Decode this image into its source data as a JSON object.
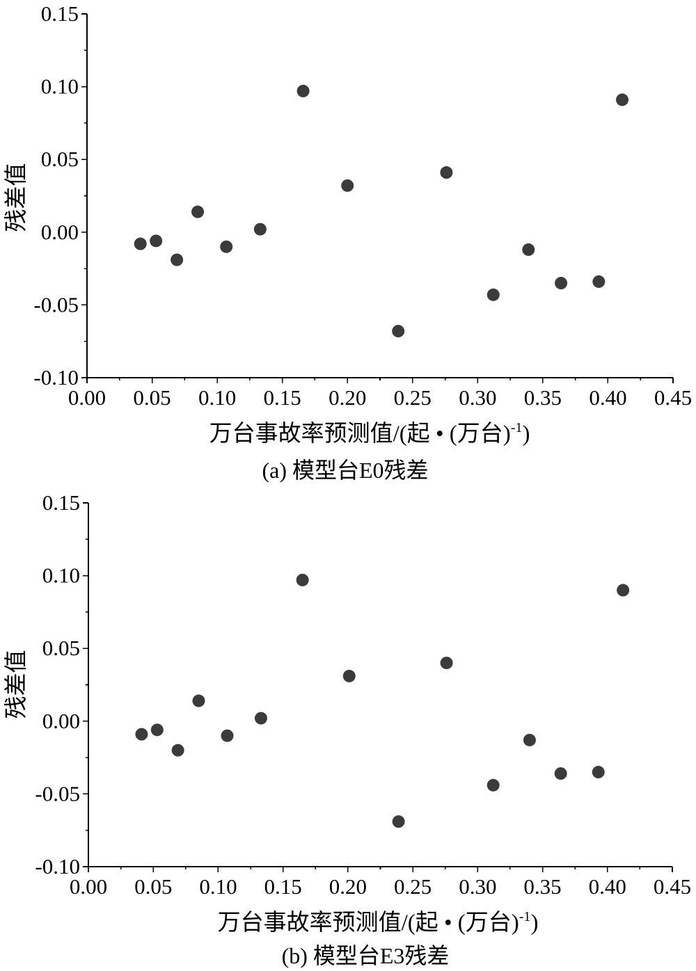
{
  "colors": {
    "marker": "#3b3b3b",
    "axis": "#000000",
    "text": "#000000"
  },
  "chart_data": [
    {
      "type": "scatter",
      "caption": "(a) 模型台E0残差",
      "xlabel": "万台事故率预测值/(起 • (万台)",
      "xlabel_superscript": "-1",
      "xlabel_suffix": ")",
      "ylabel": "残差值",
      "xlim": [
        0,
        0.45
      ],
      "ylim": [
        -0.1,
        0.15
      ],
      "xticks": [
        "0.00",
        "0.05",
        "0.10",
        "0.15",
        "0.20",
        "0.25",
        "0.30",
        "0.35",
        "0.40",
        "0.45"
      ],
      "yticks": [
        "-0.10",
        "-0.05",
        "0.00",
        "0.05",
        "0.10",
        "0.15"
      ],
      "grid": false,
      "legend": "none",
      "series": [
        {
          "x": [
            0.041,
            0.053,
            0.069,
            0.085,
            0.107,
            0.133,
            0.166,
            0.2,
            0.239,
            0.276,
            0.312,
            0.339,
            0.364,
            0.393,
            0.411
          ],
          "y": [
            -0.008,
            -0.006,
            -0.019,
            0.014,
            -0.01,
            0.002,
            0.097,
            0.032,
            -0.068,
            0.041,
            -0.043,
            -0.012,
            -0.035,
            -0.034,
            0.091
          ]
        }
      ]
    },
    {
      "type": "scatter",
      "caption": "(b) 模型台E3残差",
      "xlabel": "万台事故率预测值/(起 • (万台)",
      "xlabel_superscript": "-1",
      "xlabel_suffix": ")",
      "ylabel": "残差值",
      "xlim": [
        0,
        0.45
      ],
      "ylim": [
        -0.1,
        0.15
      ],
      "xticks": [
        "0.00",
        "0.05",
        "0.10",
        "0.15",
        "0.20",
        "0.25",
        "0.30",
        "0.35",
        "0.40",
        "0.45"
      ],
      "yticks": [
        "-0.10",
        "-0.05",
        "0.00",
        "0.05",
        "0.10",
        "0.15"
      ],
      "grid": false,
      "legend": "none",
      "series": [
        {
          "x": [
            0.041,
            0.053,
            0.069,
            0.085,
            0.107,
            0.133,
            0.165,
            0.201,
            0.239,
            0.276,
            0.312,
            0.34,
            0.364,
            0.393,
            0.412
          ],
          "y": [
            -0.009,
            -0.006,
            -0.02,
            0.014,
            -0.01,
            0.002,
            0.097,
            0.031,
            -0.069,
            0.04,
            -0.044,
            -0.013,
            -0.036,
            -0.035,
            0.09
          ]
        }
      ]
    }
  ]
}
